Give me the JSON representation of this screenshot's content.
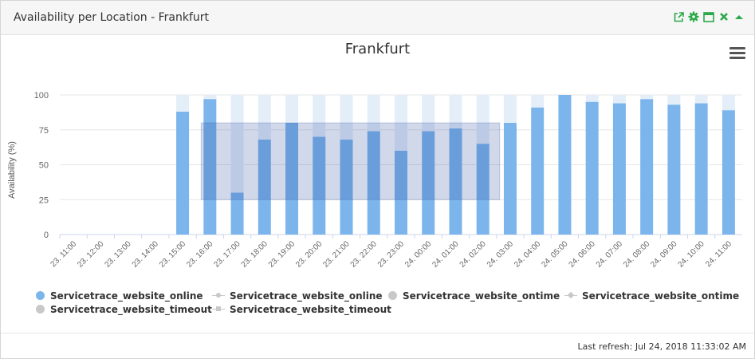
{
  "widget": {
    "title": "Availability per Location - Frankfurt",
    "icons": [
      "external-link-icon",
      "gear-icon",
      "maximize-icon",
      "close-icon",
      "collapse-icon"
    ],
    "accent_color": "#2ba84a"
  },
  "footer": {
    "last_refresh": "Last refresh: Jul 24, 2018 11:33:02 AM"
  },
  "chart_data": {
    "type": "bar",
    "title": "Frankfurt",
    "xlabel": "",
    "ylabel": "Availability (%)",
    "ylim": [
      0,
      100
    ],
    "yticks": [
      "0",
      "25",
      "50",
      "75",
      "100"
    ],
    "grid": true,
    "legend_placement": "bottom",
    "categories": [
      "23. 11:00",
      "23. 12:00",
      "23. 13:00",
      "23. 14:00",
      "23. 15:00",
      "23. 16:00",
      "23. 17:00",
      "23. 18:00",
      "23. 19:00",
      "23. 20:00",
      "23. 21:00",
      "23. 22:00",
      "23. 23:00",
      "24. 00:00",
      "24. 01:00",
      "24. 02:00",
      "24. 03:00",
      "24. 04:00",
      "24. 05:00",
      "24. 06:00",
      "24. 07:00",
      "24. 08:00",
      "24. 09:00",
      "24. 10:00",
      "24. 11:00"
    ],
    "series": [
      {
        "name": "Servicetrace_website_online",
        "color": "#7cb5ec",
        "values": [
          null,
          null,
          null,
          null,
          88,
          97,
          30,
          68,
          80,
          70,
          68,
          74,
          60,
          74,
          76,
          65,
          80,
          91,
          100,
          95,
          94,
          97,
          93,
          94,
          89
        ]
      },
      {
        "name": "Servicetrace_website_timeout",
        "color": "#e4eef9",
        "values": [
          null,
          null,
          null,
          null,
          12,
          3,
          70,
          32,
          20,
          30,
          32,
          26,
          40,
          26,
          24,
          35,
          20,
          9,
          0,
          5,
          6,
          3,
          7,
          6,
          11
        ]
      }
    ],
    "overlay": {
      "x_from": "23. 16:00",
      "x_to": "24. 02:00",
      "y_from": 25,
      "y_to": 80,
      "color": "#2c4f9e"
    },
    "legend": [
      {
        "label": "Servicetrace_website_online",
        "marker": "dot",
        "color": "#7cb5ec"
      },
      {
        "label": "Servicetrace_website_online",
        "marker": "line-circle",
        "color": "#c8c8c8"
      },
      {
        "label": "Servicetrace_website_ontime",
        "marker": "dot",
        "color": "#c8c8c8"
      },
      {
        "label": "Servicetrace_website_ontime",
        "marker": "line-diamond",
        "color": "#c8c8c8"
      },
      {
        "label": "Servicetrace_website_timeout",
        "marker": "dot",
        "color": "#c8c8c8"
      },
      {
        "label": "Servicetrace_website_timeout",
        "marker": "line-square",
        "color": "#c8c8c8"
      }
    ]
  }
}
